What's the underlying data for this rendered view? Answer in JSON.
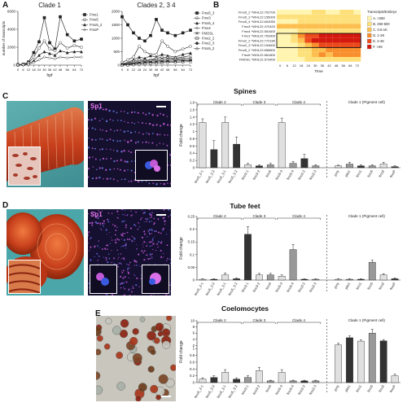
{
  "panels": {
    "a": {
      "label": "A"
    },
    "b": {
      "label": "B"
    },
    "c": {
      "label": "C"
    },
    "d": {
      "label": "D"
    },
    "e": {
      "label": "E"
    }
  },
  "chart_data": [
    {
      "id": "A1",
      "type": "line",
      "title": "Clade 1",
      "ylabel": "number of transcripts",
      "xlabel": "hpf",
      "x": [
        0,
        6,
        12,
        18,
        24,
        30,
        36,
        42,
        48,
        56,
        64,
        72
      ],
      "ylim": [
        0,
        6000
      ],
      "yticks": [
        "0",
        "2000",
        "4000",
        "6000"
      ],
      "series": [
        {
          "name": "Fmo1",
          "values": [
            50,
            100,
            350,
            1400,
            2600,
            5300,
            2500,
            1800,
            5400,
            3400,
            2700,
            2900
          ]
        },
        {
          "name": "Fmo5",
          "values": [
            30,
            80,
            250,
            900,
            1900,
            2700,
            1800,
            1600,
            2500,
            1900,
            2200,
            2000
          ]
        },
        {
          "name": "Fmo5_2",
          "values": [
            20,
            60,
            150,
            500,
            1100,
            1500,
            1300,
            1100,
            1600,
            1400,
            1500,
            1500
          ]
        },
        {
          "name": "FmoP",
          "values": [
            10,
            30,
            100,
            300,
            600,
            900,
            800,
            700,
            900,
            800,
            900,
            900
          ]
        }
      ]
    },
    {
      "id": "A2",
      "type": "line",
      "title": "Clades 2, 3 4",
      "xlabel": "hpf",
      "x": [
        0,
        6,
        12,
        18,
        24,
        30,
        36,
        42,
        48,
        56,
        64,
        72
      ],
      "ylim": [
        0,
        2000
      ],
      "yticks": [
        "0",
        "500",
        "1000",
        "1500",
        "2000"
      ],
      "series": [
        {
          "name": "Fmo5_3",
          "values": [
            1800,
            1500,
            1200,
            1000,
            900,
            1100,
            1700,
            1300,
            1200,
            1100,
            1200,
            1300
          ]
        },
        {
          "name": "Fmo3",
          "values": [
            100,
            200,
            300,
            700,
            500,
            400,
            400,
            900,
            700,
            500,
            600,
            700
          ]
        },
        {
          "name": "Fmo5_4",
          "values": [
            50,
            100,
            200,
            300,
            250,
            350,
            300,
            400,
            350,
            300,
            400,
            450
          ]
        },
        {
          "name": "Fmo4",
          "values": [
            30,
            80,
            150,
            200,
            180,
            200,
            250,
            300,
            280,
            260,
            300,
            350
          ]
        },
        {
          "name": "FMOSL",
          "values": [
            20,
            60,
            100,
            150,
            160,
            180,
            200,
            220,
            240,
            230,
            250,
            260
          ]
        },
        {
          "name": "Fmo2_2",
          "values": [
            10,
            40,
            80,
            120,
            130,
            150,
            160,
            170,
            180,
            190,
            200,
            210
          ]
        },
        {
          "name": "Fmo2_3",
          "values": [
            5,
            20,
            50,
            80,
            100,
            110,
            120,
            130,
            140,
            150,
            160,
            170
          ]
        },
        {
          "name": "Fmo5_2",
          "values": [
            3,
            10,
            30,
            50,
            60,
            70,
            80,
            90,
            100,
            110,
            120,
            130
          ]
        }
      ]
    },
    {
      "id": "B",
      "type": "heatmap",
      "xlabel": "Time",
      "x": [
        "0",
        "6",
        "12",
        "18",
        "24",
        "30",
        "36",
        "42",
        "48",
        "56",
        "64",
        "72"
      ],
      "rows": [
        "Fmo5_2 *WHL22.702700",
        "Fmo5_3 *WHL22.155000",
        "Fmo5_4 *WHL22.604050",
        "Fmo3 *WHL22.470420",
        "Fmo4 *WHL22.551600",
        "Fmo1 *WHL22.753900",
        "Fmo2_2 *WHL22.772180",
        "Fmo2_3 *WHL22.154600",
        "Fmo5_2 *WHL22.658800",
        "Fmo5 *WHL22.681800",
        "FMOSL *WHL22.573400"
      ],
      "values": [
        [
          1,
          1,
          1,
          1,
          1,
          2,
          2,
          1,
          1,
          2,
          2,
          1
        ],
        [
          2,
          2,
          2,
          2,
          2,
          2,
          2,
          2,
          2,
          2,
          2,
          2
        ],
        [
          1,
          1,
          1,
          2,
          2,
          2,
          2,
          2,
          2,
          2,
          2,
          2
        ],
        [
          3,
          3,
          3,
          3,
          3,
          3,
          3,
          3,
          3,
          3,
          3,
          3
        ],
        [
          1,
          1,
          1,
          2,
          2,
          2,
          2,
          2,
          2,
          2,
          2,
          2
        ],
        [
          1,
          1,
          2,
          4,
          5,
          5,
          6,
          6,
          6,
          6,
          6,
          6
        ],
        [
          1,
          1,
          2,
          3,
          5,
          6,
          6,
          6,
          6,
          6,
          6,
          6
        ],
        [
          1,
          1,
          1,
          2,
          3,
          4,
          5,
          5,
          5,
          5,
          5,
          5
        ],
        [
          1,
          1,
          1,
          2,
          2,
          3,
          3,
          4,
          4,
          4,
          4,
          4
        ],
        [
          1,
          1,
          1,
          2,
          2,
          3,
          4,
          3,
          4,
          4,
          4,
          4
        ],
        [
          1,
          1,
          1,
          1,
          2,
          2,
          2,
          2,
          2,
          2,
          2,
          2
        ]
      ],
      "legend": {
        "title": "Transcripts/Embryo",
        "entries": [
          {
            "label": "A. >260",
            "color": "#fff5b0"
          },
          {
            "label": "B. 250-500",
            "color": "#fde07a"
          },
          {
            "label": "C. 0.5-1K",
            "color": "#fcbe4e"
          },
          {
            "label": "D. 1-2K",
            "color": "#f88e2c"
          },
          {
            "label": "E. 2-4K",
            "color": "#ec4a1c"
          },
          {
            "label": "F. >4K",
            "color": "#d4180e"
          }
        ]
      }
    },
    {
      "id": "C-bar",
      "type": "bar",
      "title": "Spines",
      "ylabel": "Fold change",
      "ylim": [
        0,
        1.8
      ],
      "yticks": [
        "0",
        "0.2",
        "0.4",
        "0.6",
        "0.8",
        "1",
        "1.2",
        "1.4",
        "1.6",
        "1.8"
      ],
      "categories": [
        "fmo5_2-1",
        "fmo5_2-2",
        "fmo5_3-1",
        "fmo5_3-2",
        "fmo3-1",
        "fmo3-2",
        "fmo4",
        "fmo5-3",
        "fmo5-4",
        "fmo2-2",
        "fmo2-3",
        "",
        "pmy",
        "pks1",
        "fmo1",
        "fmo5",
        "fmo2",
        "fmoP"
      ],
      "values": [
        1.25,
        0.5,
        1.25,
        0.65,
        0.08,
        0.05,
        0.08,
        1.25,
        0.12,
        0.25,
        0.05,
        null,
        0.05,
        0.1,
        0.05,
        0.05,
        0.1,
        0.03
      ],
      "errors": [
        0.1,
        0.25,
        0.15,
        0.2,
        0.04,
        0.03,
        0.04,
        0.12,
        0.05,
        0.12,
        0.03,
        null,
        0.02,
        0.05,
        0.03,
        0.03,
        0.05,
        0.02
      ],
      "fills": [
        "#e0e0e0",
        "#333333",
        "#e0e0e0",
        "#333333",
        "#e0e0e0",
        "#333333",
        "#999999",
        "#e0e0e0",
        "#999999",
        "#333333",
        "#999999",
        null,
        "#e0e0e0",
        "#999999",
        "#333333",
        "#999999",
        "#e0e0e0",
        "#333333"
      ],
      "groups": [
        {
          "label": "Clade 2",
          "from": 0,
          "to": 3
        },
        {
          "label": "Clade 3",
          "from": 4,
          "to": 6
        },
        {
          "label": "Clade 4",
          "from": 7,
          "to": 10
        },
        {
          "label": "Clade 1 (Pigment cell)",
          "from": 12,
          "to": 17
        }
      ]
    },
    {
      "id": "D-bar",
      "type": "bar",
      "title": "Tube feet",
      "ylabel": "Fold change",
      "ylim": [
        0,
        0.25
      ],
      "yticks": [
        "0",
        "0.05",
        "0.1",
        "0.15",
        "0.2",
        "0.25"
      ],
      "categories": [
        "fmo5_2-1",
        "fmo5_2-2",
        "fmo5_3-1",
        "fmo5_3-2",
        "fmo3-1",
        "fmo3-2",
        "fmo4",
        "fmo5-3",
        "fmo5-4",
        "fmo2-2",
        "fmo2-3",
        "",
        "pmy",
        "pks1",
        "fmo1",
        "fmo5",
        "fmo2",
        "fmoP"
      ],
      "values": [
        0.003,
        0.003,
        0.02,
        0.005,
        0.18,
        0.02,
        0.02,
        0.015,
        0.12,
        0.003,
        0.003,
        null,
        0.003,
        0.003,
        0.003,
        0.07,
        0.02,
        0.005
      ],
      "errors": [
        0.002,
        0.002,
        0.008,
        0.003,
        0.03,
        0.006,
        0.006,
        0.005,
        0.02,
        0.002,
        0.002,
        null,
        0.002,
        0.002,
        0.002,
        0.008,
        0.005,
        0.003
      ],
      "fills": [
        "#e0e0e0",
        "#333333",
        "#e0e0e0",
        "#333333",
        "#333333",
        "#e0e0e0",
        "#999999",
        "#e0e0e0",
        "#999999",
        "#333333",
        "#999999",
        null,
        "#e0e0e0",
        "#999999",
        "#333333",
        "#999999",
        "#e0e0e0",
        "#333333"
      ],
      "groups": [
        {
          "label": "Clade 2",
          "from": 0,
          "to": 3
        },
        {
          "label": "Clade 3",
          "from": 4,
          "to": 6
        },
        {
          "label": "Clade 4",
          "from": 7,
          "to": 10
        },
        {
          "label": "Clade 1 (Pigment cell)",
          "from": 12,
          "to": 17
        }
      ]
    },
    {
      "id": "E-bar",
      "type": "bar",
      "title": "Coelomocytes",
      "ylabel": "Fold change",
      "ylim": [
        0,
        10
      ],
      "yticks": [
        "0",
        "0.2",
        "0.4",
        "0.6",
        "0.8",
        "1",
        "2",
        "4",
        "6",
        "8",
        "10"
      ],
      "categories": [
        "fmo5_2-1",
        "fmo5_2-2",
        "fmo5_3-1",
        "fmo5_3-2",
        "fmo3-1",
        "fmo3-2",
        "fmo4",
        "fmo5-3",
        "fmo5-4",
        "fmo2-2",
        "fmo2-3",
        "",
        "pmy",
        "pks1",
        "fmo1",
        "fmo5",
        "fmo2",
        "fmoP"
      ],
      "values": [
        0.1,
        0.15,
        0.3,
        0.1,
        0.15,
        0.35,
        0.05,
        0.3,
        0.05,
        0.05,
        0.05,
        null,
        2.2,
        4.5,
        3.4,
        6.0,
        3.5,
        0.2
      ],
      "errors": [
        0.04,
        0.05,
        0.08,
        0.04,
        0.05,
        0.1,
        0.02,
        0.08,
        0.02,
        0.02,
        0.02,
        null,
        0.5,
        0.6,
        0.4,
        1.2,
        0.4,
        0.05
      ],
      "fills": [
        "#e0e0e0",
        "#333333",
        "#e0e0e0",
        "#333333",
        "#999999",
        "#e0e0e0",
        "#999999",
        "#e0e0e0",
        "#999999",
        "#333333",
        "#999999",
        null,
        "#e0e0e0",
        "#333333",
        "#e0e0e0",
        "#999999",
        "#333333",
        "#e0e0e0"
      ],
      "groups": [
        {
          "label": "Clade 2",
          "from": 0,
          "to": 3
        },
        {
          "label": "Clade 3",
          "from": 4,
          "to": 6
        },
        {
          "label": "Clade 4",
          "from": 7,
          "to": 10
        },
        {
          "label": "Clade 1 (Pigment cell)",
          "from": 12,
          "to": 17
        }
      ]
    }
  ],
  "images": {
    "c_stain": {
      "label": "Sp1"
    },
    "d_stain": {
      "label": "Sp1"
    }
  },
  "colors": {
    "sea_urchin_red": "#c8401c",
    "background_teal": "#4aa6a8",
    "stain_bg": "#14102e",
    "stain_dot": "#c25ad8"
  }
}
